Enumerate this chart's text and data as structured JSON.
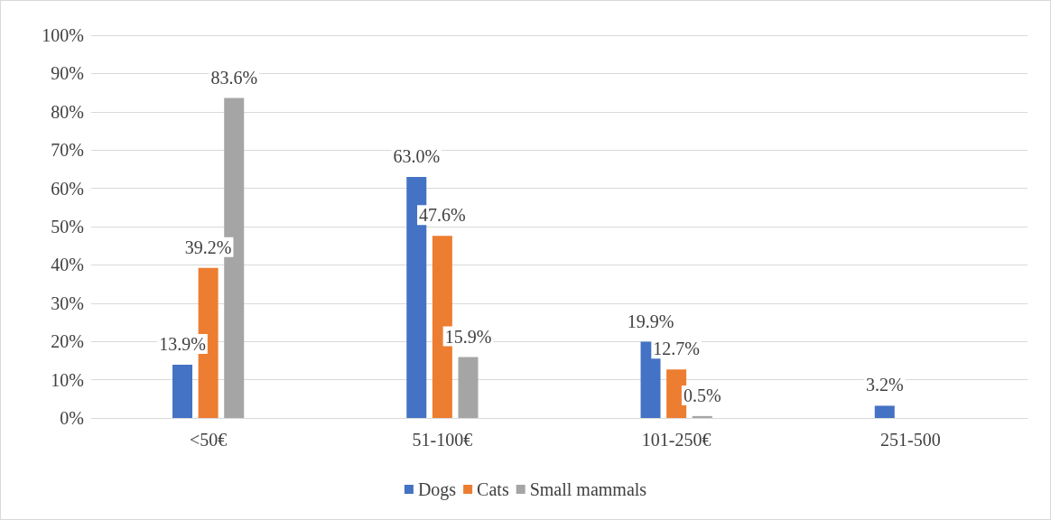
{
  "chart_data": {
    "type": "bar",
    "categories": [
      "<50€",
      "51-100€",
      "101-250€",
      "251-500"
    ],
    "series": [
      {
        "name": "Dogs",
        "color": "#4472c4",
        "values": [
          13.9,
          63.0,
          19.9,
          3.2
        ],
        "value_labels": [
          "13.9%",
          "63.0%",
          "19.9%",
          "3.2%"
        ]
      },
      {
        "name": "Cats",
        "color": "#ed7d31",
        "values": [
          39.2,
          47.6,
          12.7,
          null
        ],
        "value_labels": [
          "39.2%",
          "47.6%",
          "12.7%",
          null
        ]
      },
      {
        "name": "Small mammals",
        "color": "#a5a5a5",
        "values": [
          83.6,
          15.9,
          0.5,
          null
        ],
        "value_labels": [
          "83.6%",
          "15.9%",
          "0.5%",
          null
        ]
      }
    ],
    "ylim": [
      0,
      100
    ],
    "yticks": [
      {
        "value": 0,
        "label": "0%"
      },
      {
        "value": 10,
        "label": "10%"
      },
      {
        "value": 20,
        "label": "20%"
      },
      {
        "value": 30,
        "label": "30%"
      },
      {
        "value": 40,
        "label": "40%"
      },
      {
        "value": 50,
        "label": "50%"
      },
      {
        "value": 60,
        "label": "60%"
      },
      {
        "value": 70,
        "label": "70%"
      },
      {
        "value": 80,
        "label": "80%"
      },
      {
        "value": 90,
        "label": "90%"
      },
      {
        "value": 100,
        "label": "100%"
      }
    ],
    "grid": "y",
    "legend": "bottom"
  }
}
